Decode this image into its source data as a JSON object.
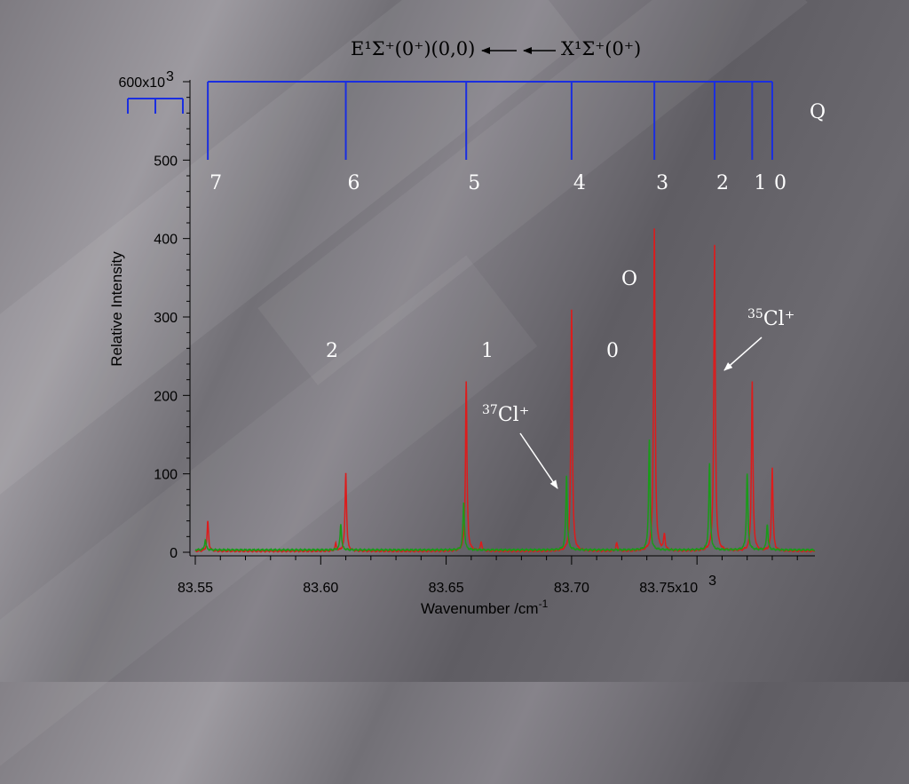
{
  "chart_data": {
    "type": "line",
    "title": "E¹Σ⁺(0⁺)(0,0) ⟵ ⟵ X¹Σ⁺(0⁺)",
    "title_parts": {
      "upper_state": "E¹Σ⁺(0⁺)(0,0)",
      "lower_state": "X¹Σ⁺(0⁺)"
    },
    "xlabel": "Wavenumber  /cm",
    "xlabel_exp": "-1",
    "ylabel": "Relative Intensity",
    "xlim": [
      83550,
      83797
    ],
    "ylim": [
      0,
      600000
    ],
    "x_ticks": [
      {
        "value": 83550,
        "label": "83.55"
      },
      {
        "value": 83600,
        "label": "83.60"
      },
      {
        "value": 83650,
        "label": "83.65"
      },
      {
        "value": 83700,
        "label": "83.70"
      },
      {
        "value": 83750,
        "label": "83.75x10"
      }
    ],
    "x_tick_exp": "3",
    "y_ticks": [
      {
        "value": 0,
        "label": "0"
      },
      {
        "value": 100000,
        "label": "100"
      },
      {
        "value": 200000,
        "label": "200"
      },
      {
        "value": 300000,
        "label": "300"
      },
      {
        "value": 400000,
        "label": "400"
      },
      {
        "value": 500000,
        "label": "500"
      },
      {
        "value": 600000,
        "label": "600x10"
      }
    ],
    "y_tick_exp": "3",
    "series": [
      {
        "name": "35Cl+",
        "color": "#dd1c1c",
        "baseline": 1500,
        "peaks": [
          {
            "x": 83555,
            "y": 38000
          },
          {
            "x": 83606,
            "y": 9000
          },
          {
            "x": 83610,
            "y": 100000
          },
          {
            "x": 83658,
            "y": 217000
          },
          {
            "x": 83664,
            "y": 11000
          },
          {
            "x": 83700,
            "y": 308000
          },
          {
            "x": 83718,
            "y": 10000
          },
          {
            "x": 83733,
            "y": 411000
          },
          {
            "x": 83737,
            "y": 20000
          },
          {
            "x": 83757,
            "y": 390000
          },
          {
            "x": 83772,
            "y": 216000
          },
          {
            "x": 83780,
            "y": 106000
          }
        ]
      },
      {
        "name": "37Cl+",
        "color": "#1a9a1a",
        "baseline": 3000,
        "peaks": [
          {
            "x": 83554,
            "y": 13000
          },
          {
            "x": 83608,
            "y": 33000
          },
          {
            "x": 83657,
            "y": 60000
          },
          {
            "x": 83698,
            "y": 95000
          },
          {
            "x": 83731,
            "y": 140000
          },
          {
            "x": 83755,
            "y": 110000
          },
          {
            "x": 83770,
            "y": 97000
          },
          {
            "x": 83778,
            "y": 33000
          }
        ]
      }
    ],
    "q_branch": {
      "label": "Q",
      "color": "#1a2ee0",
      "lines": [
        {
          "x": 83555,
          "label": "7"
        },
        {
          "x": 83610,
          "label": "6"
        },
        {
          "x": 83658,
          "label": "5"
        },
        {
          "x": 83700,
          "label": "4"
        },
        {
          "x": 83733,
          "label": "3"
        },
        {
          "x": 83757,
          "label": "2"
        },
        {
          "x": 83772,
          "label": "1"
        },
        {
          "x": 83780,
          "label": "0"
        }
      ]
    },
    "o_branch": {
      "label": "O",
      "numbers": [
        "2",
        "1",
        "0"
      ]
    },
    "annotations": {
      "cl35": {
        "mass": "35",
        "label": "Cl⁺"
      },
      "cl37": {
        "mass": "37",
        "label": "Cl⁺"
      }
    }
  }
}
